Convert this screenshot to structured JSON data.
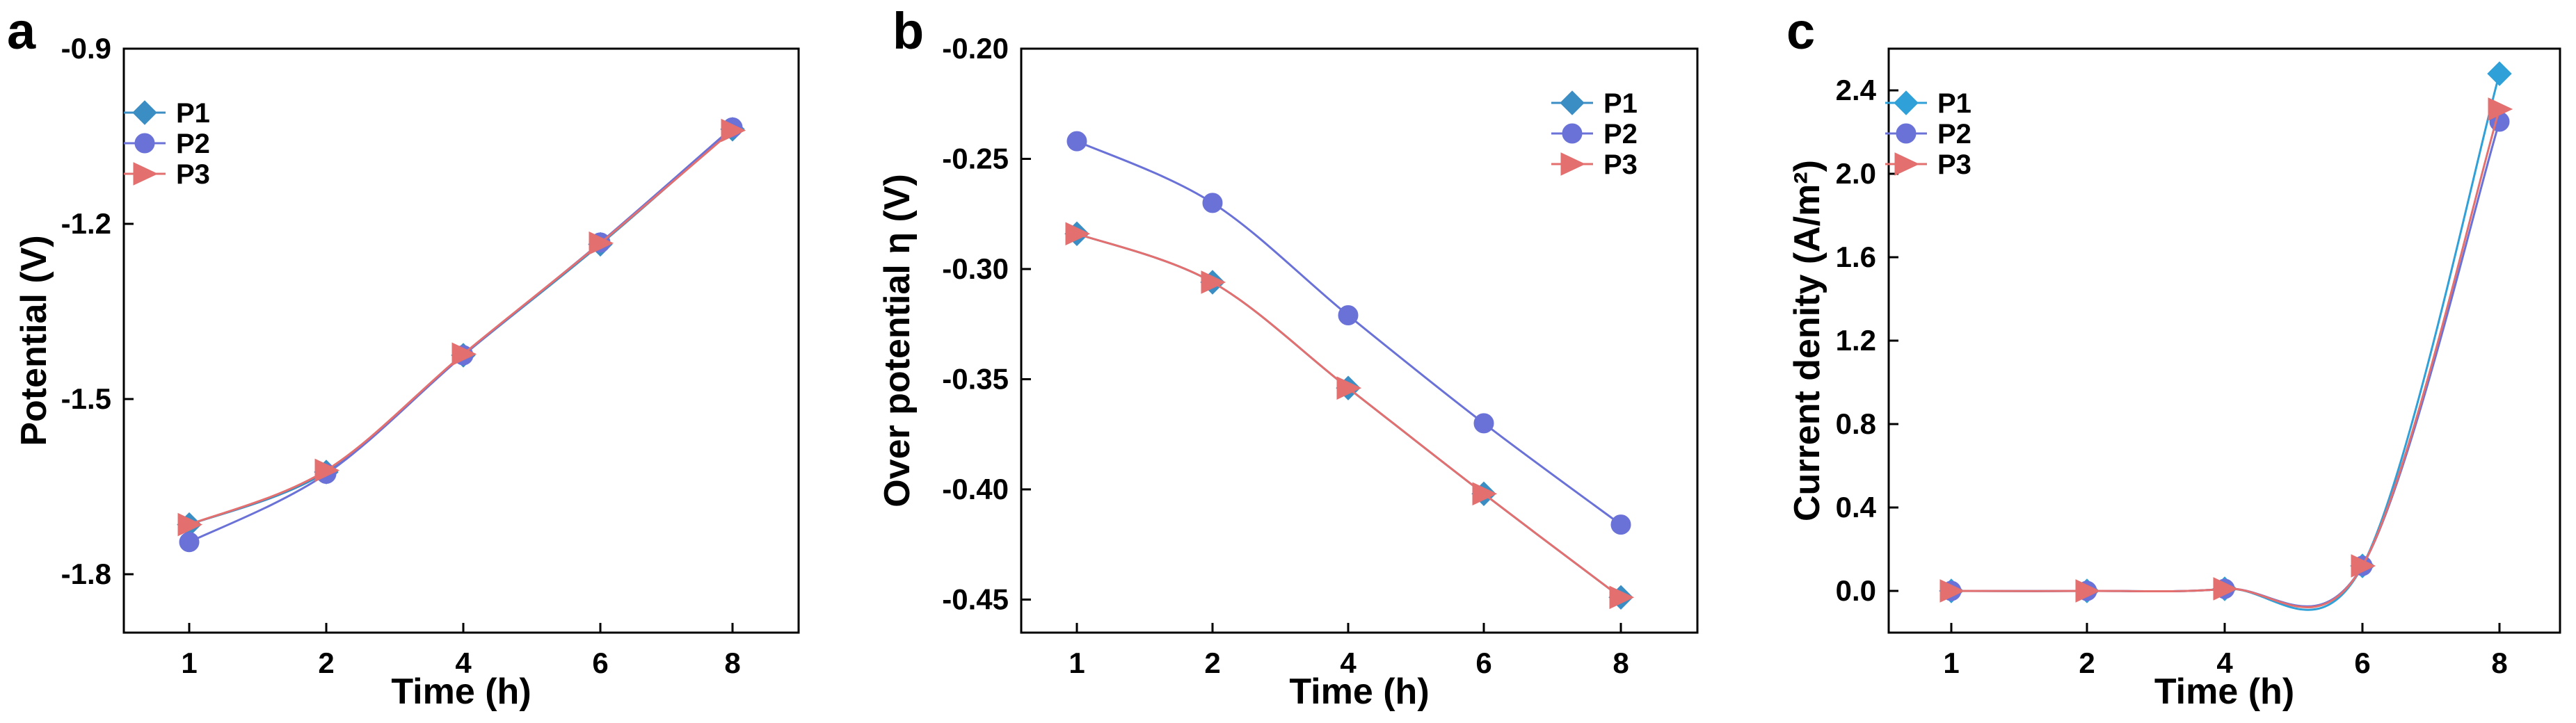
{
  "chart_data": [
    {
      "type": "line",
      "panel": "a",
      "xlabel": "Time (h)",
      "ylabel": "Potential (V)",
      "categories": [
        "1",
        "2",
        "4",
        "6",
        "8"
      ],
      "y_ticks": [
        -1.8,
        -1.5,
        -1.2,
        -0.9
      ],
      "y_tick_labels": [
        "-1.8",
        "-1.5",
        "-1.2",
        "-0.9"
      ],
      "ylim": [
        -1.9,
        -0.9
      ],
      "legend": "top-left",
      "series": [
        {
          "name": "P1",
          "marker": "diamond",
          "color": "#3b8ec4",
          "values": [
            -1.715,
            -1.625,
            -1.425,
            -1.235,
            -1.038
          ]
        },
        {
          "name": "P2",
          "marker": "circle",
          "color": "#6a72d8",
          "values": [
            -1.745,
            -1.628,
            -1.425,
            -1.232,
            -1.035
          ]
        },
        {
          "name": "P3",
          "marker": "triangle",
          "color": "#e36f6f",
          "values": [
            -1.715,
            -1.622,
            -1.423,
            -1.233,
            -1.04
          ]
        }
      ]
    },
    {
      "type": "line",
      "panel": "b",
      "xlabel": "Time (h)",
      "ylabel": "Over potential η (V)",
      "categories": [
        "1",
        "2",
        "4",
        "6",
        "8"
      ],
      "y_ticks": [
        -0.45,
        -0.4,
        -0.35,
        -0.3,
        -0.25,
        -0.2
      ],
      "y_tick_labels": [
        "-0.45",
        "-0.40",
        "-0.35",
        "-0.30",
        "-0.25",
        "-0.20"
      ],
      "ylim": [
        -0.465,
        -0.2
      ],
      "legend": "top-right",
      "series": [
        {
          "name": "P1",
          "marker": "diamond",
          "color": "#3b8ec4",
          "values": [
            -0.284,
            -0.306,
            -0.354,
            -0.402,
            -0.449
          ]
        },
        {
          "name": "P2",
          "marker": "circle",
          "color": "#6a72d8",
          "values": [
            -0.242,
            -0.27,
            -0.321,
            -0.37,
            -0.416
          ]
        },
        {
          "name": "P3",
          "marker": "triangle",
          "color": "#e36f6f",
          "values": [
            -0.284,
            -0.306,
            -0.354,
            -0.402,
            -0.449
          ]
        }
      ]
    },
    {
      "type": "line",
      "panel": "c",
      "xlabel": "Time (h)",
      "ylabel": "Current denity (A/m²)",
      "categories": [
        "1",
        "2",
        "4",
        "6",
        "8"
      ],
      "y_ticks": [
        0.0,
        0.4,
        0.8,
        1.2,
        1.6,
        2.0,
        2.4
      ],
      "y_tick_labels": [
        "0.0",
        "0.4",
        "0.8",
        "1.2",
        "1.6",
        "2.0",
        "2.4"
      ],
      "ylim": [
        -0.2,
        2.6
      ],
      "legend": "top-left",
      "series": [
        {
          "name": "P1",
          "marker": "diamond",
          "color": "#2fa0d8",
          "values": [
            0.0,
            0.0,
            0.01,
            0.12,
            2.48
          ]
        },
        {
          "name": "P2",
          "marker": "circle",
          "color": "#6a72d8",
          "values": [
            0.0,
            0.0,
            0.01,
            0.12,
            2.25
          ]
        },
        {
          "name": "P3",
          "marker": "triangle",
          "color": "#e36f6f",
          "values": [
            0.0,
            0.0,
            0.01,
            0.12,
            2.31
          ]
        }
      ]
    }
  ]
}
